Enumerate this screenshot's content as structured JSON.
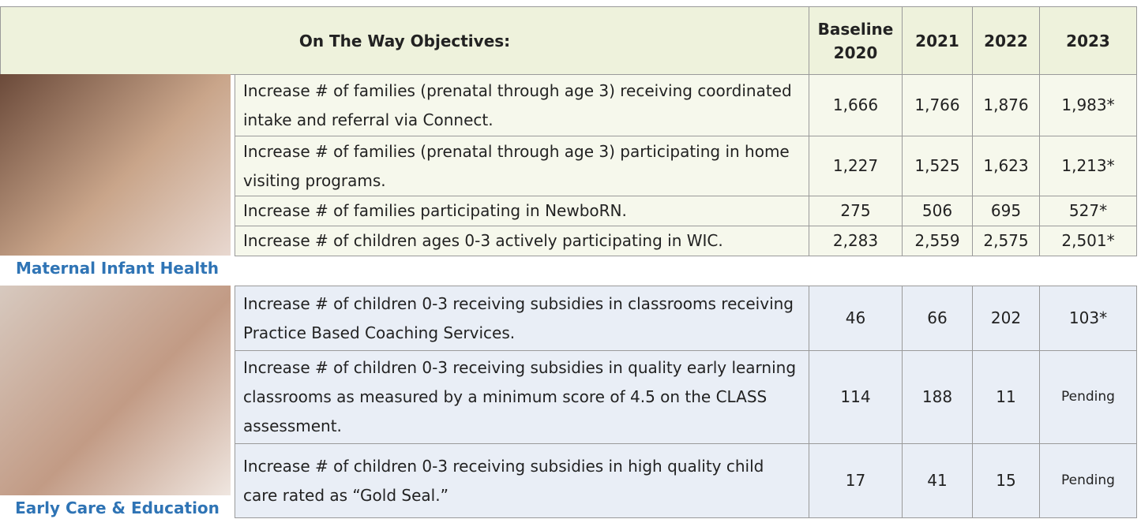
{
  "header": {
    "objectives_label": "On The Way Objectives:",
    "columns": [
      "Baseline 2020",
      "2021",
      "2022",
      "2023"
    ]
  },
  "sections": [
    {
      "caption": "Maternal Infant Health",
      "rows": [
        {
          "objective": "Increase # of families (prenatal through age 3) receiving coordinated intake and referral via Connect.",
          "values": [
            "1,666",
            "1,766",
            "1,876",
            "1,983*"
          ]
        },
        {
          "objective": "Increase # of families (prenatal through age 3) participating in home visiting programs.",
          "values": [
            "1,227",
            "1,525",
            "1,623",
            "1,213*"
          ]
        },
        {
          "objective": "Increase # of families participating in NewboRN.",
          "values": [
            "275",
            "506",
            "695",
            "527*"
          ]
        },
        {
          "objective": "Increase # of children ages 0-3 actively participating in WIC.",
          "values": [
            "2,283",
            "2,559",
            "2,575",
            "2,501*"
          ]
        }
      ]
    },
    {
      "caption": "Early Care & Education",
      "rows": [
        {
          "objective": "Increase # of children 0-3 receiving subsidies in classrooms receiving Practice Based Coaching Services.",
          "values": [
            "46",
            "66",
            "202",
            "103*"
          ]
        },
        {
          "objective": "Increase # of children 0-3 receiving subsidies in quality early learning classrooms as measured by a minimum score of 4.5 on the CLASS assessment.",
          "values": [
            "114",
            "188",
            "11",
            "Pending"
          ]
        },
        {
          "objective": "Increase # of children 0-3 receiving subsidies in high quality child care rated as “Gold Seal.”",
          "values": [
            "17",
            "41",
            "15",
            "Pending"
          ]
        }
      ]
    }
  ]
}
